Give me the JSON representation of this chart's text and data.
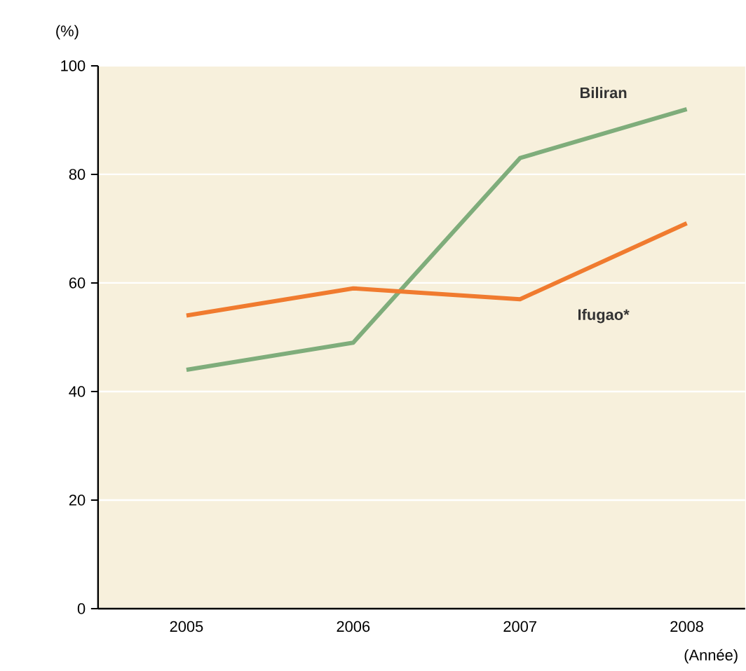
{
  "chart_data": {
    "type": "line",
    "ylabel": "(%)",
    "xlabel": "(Année)",
    "categories": [
      "2005",
      "2006",
      "2007",
      "2008"
    ],
    "series": [
      {
        "name": "Biliran",
        "color": "#7fad7b",
        "values": [
          44,
          49,
          83,
          92
        ]
      },
      {
        "name": "Ifugao*",
        "color": "#f07b2f",
        "values": [
          54,
          59,
          57,
          71
        ]
      }
    ],
    "ylim": [
      0,
      100
    ],
    "yticks": [
      0,
      20,
      40,
      60,
      80,
      100
    ],
    "grid": "y"
  }
}
